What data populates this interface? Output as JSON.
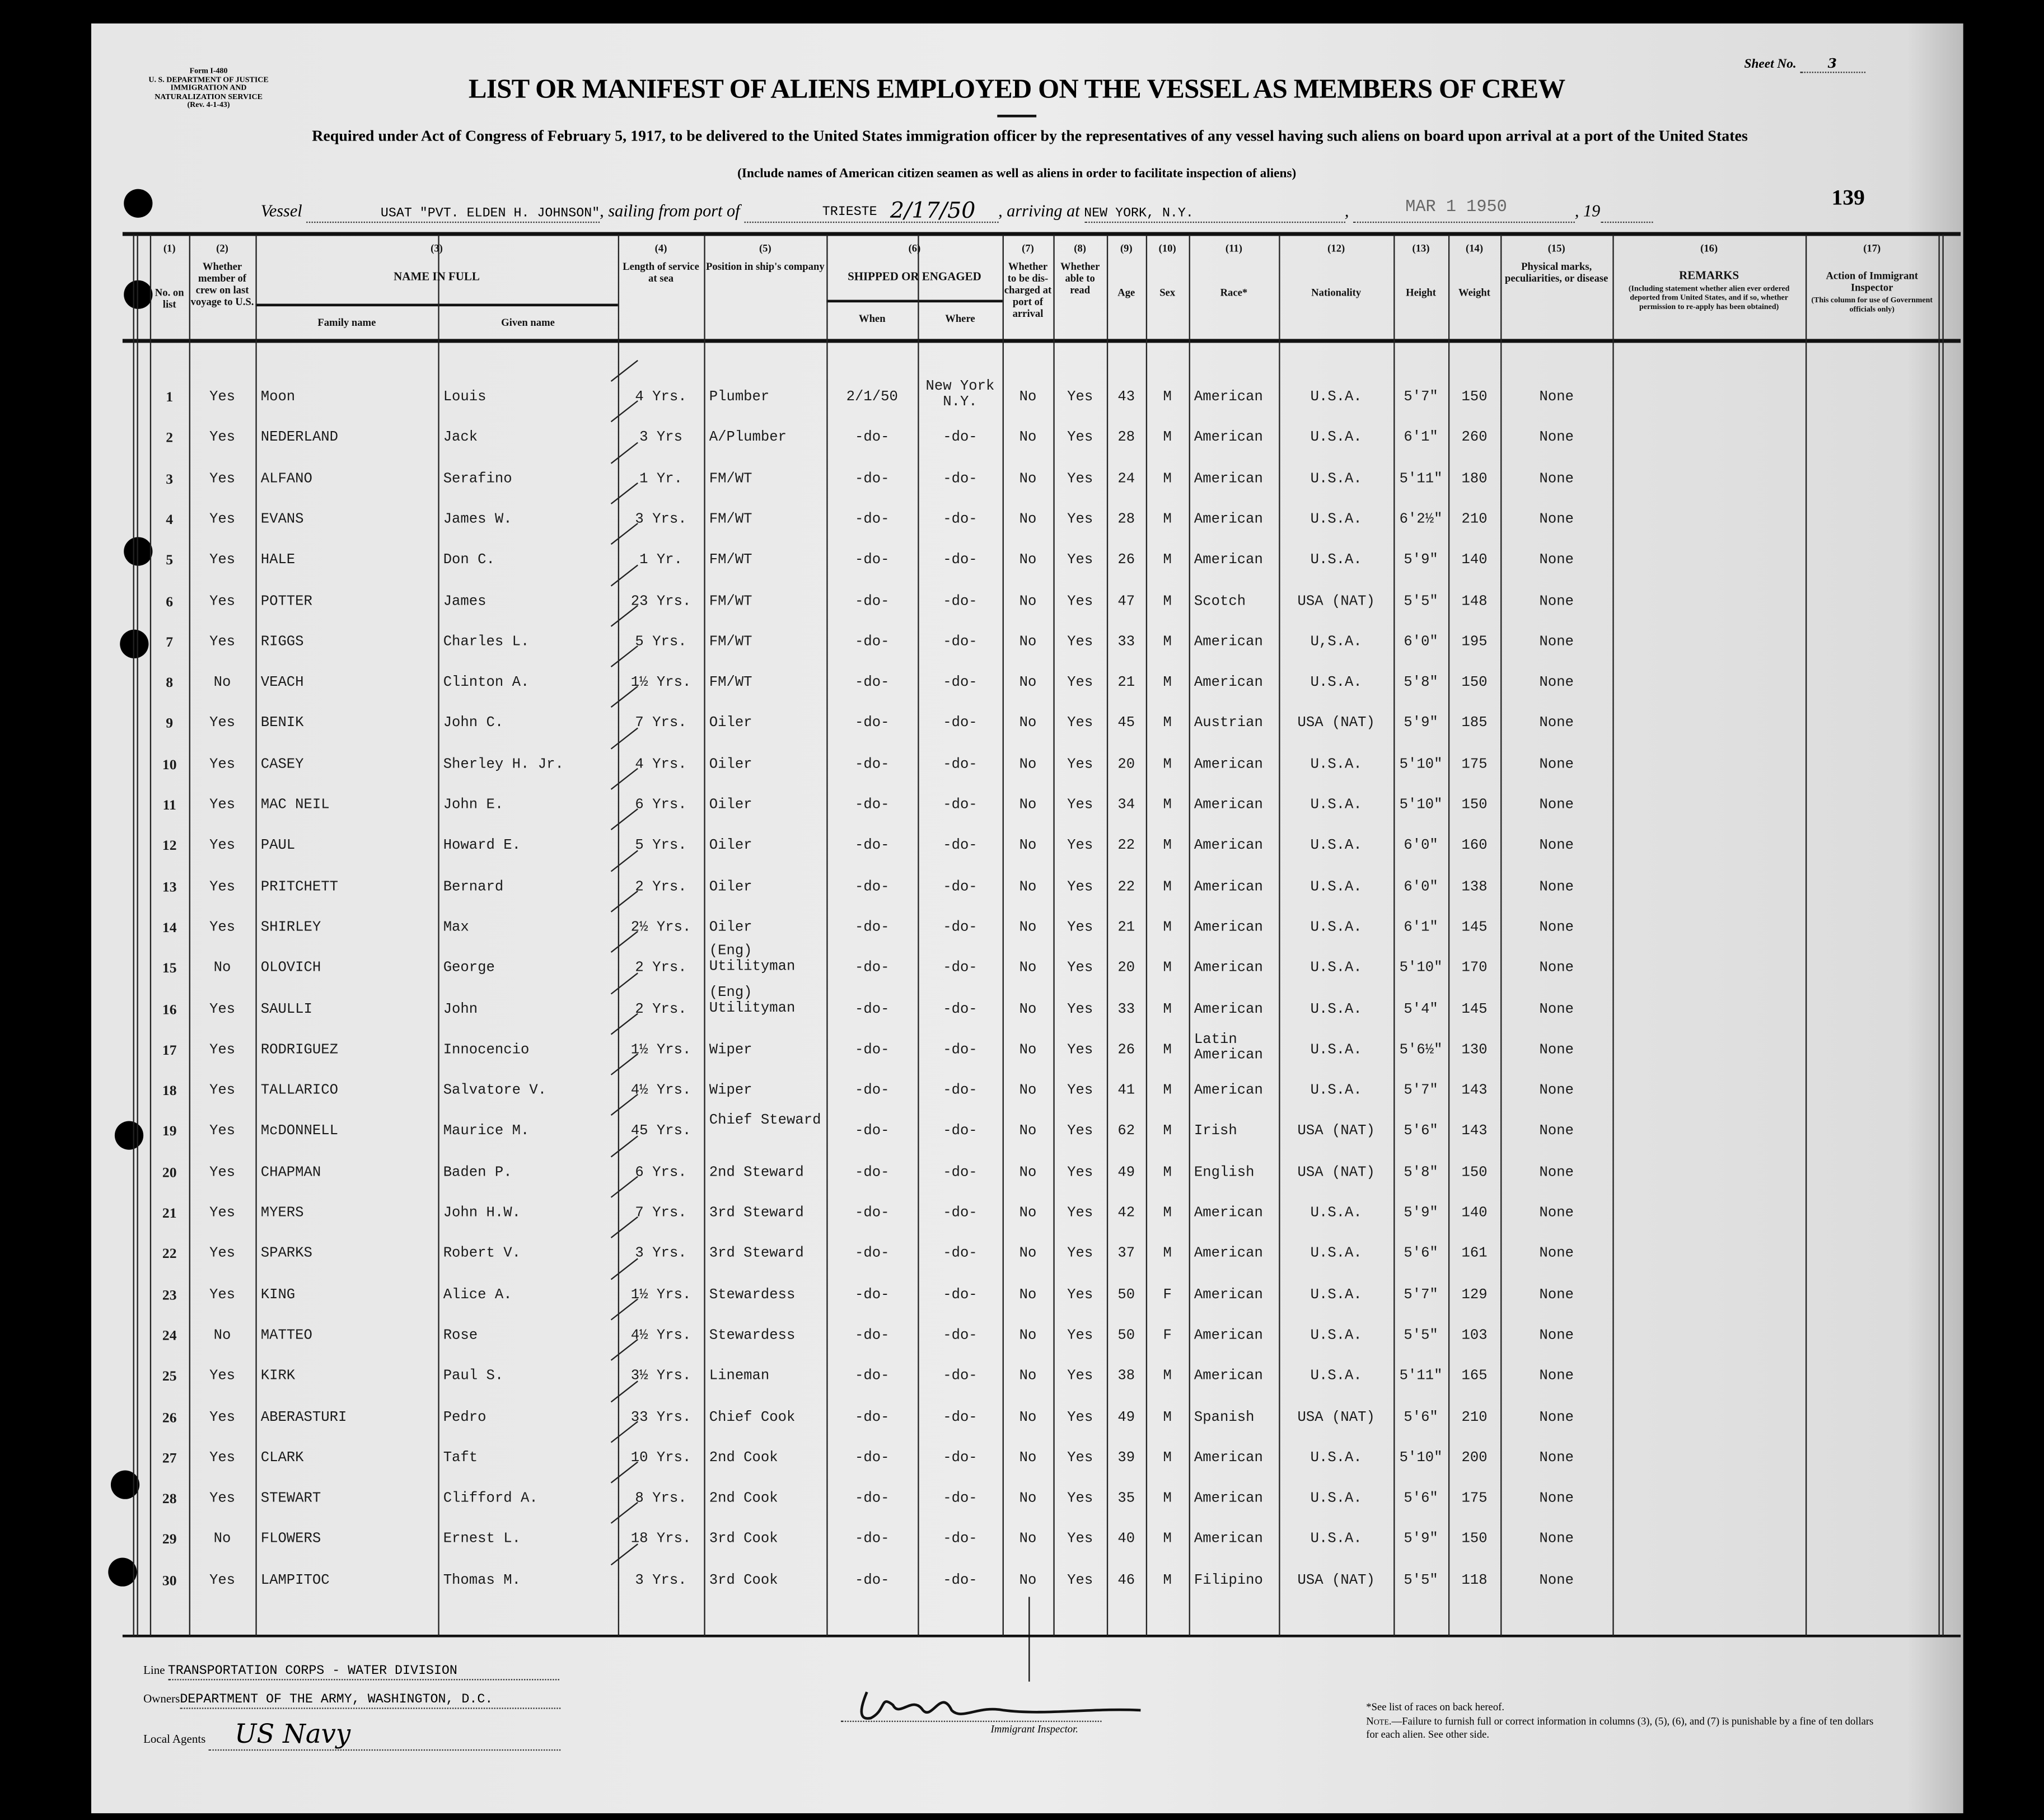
{
  "form": {
    "form_no": "Form I-480",
    "department": "U. S. DEPARTMENT OF JUSTICE",
    "service": "IMMIGRATION AND NATURALIZATION SERVICE",
    "revision": "(Rev. 4-1-43)",
    "sheet_label": "Sheet No.",
    "sheet_no": "3",
    "title": "LIST OR MANIFEST OF ALIENS EMPLOYED ON THE VESSEL AS MEMBERS OF CREW",
    "subtitle": "Required under Act of Congress of February 5, 1917, to be delivered to the United States immigration officer by the representatives of any vessel having such aliens on board upon arrival at a port of the United States",
    "note": "(Include names of American citizen seamen as well as aliens in order to facilitate inspection of aliens)",
    "page_number": "139"
  },
  "vessel": {
    "vessel_label": "Vessel",
    "vessel_name": "USAT \"PVT. ELDEN H. JOHNSON\"",
    "sailing_label": ", sailing from port of",
    "port": "TRIESTE",
    "handwritten_date": "2/17/50",
    "arriving_label": ", arriving at",
    "arrival_port": "NEW YORK, N.Y.",
    "stamp_date": "MAR 1 1950",
    "year_label": ", 19"
  },
  "columns": [
    {
      "num": "(1)",
      "label": "No. on list"
    },
    {
      "num": "(2)",
      "label": "Whether member of crew on last voyage to U.S."
    },
    {
      "num": "(3)",
      "label": "NAME IN FULL",
      "sub": [
        "Family name",
        "Given name"
      ]
    },
    {
      "num": "(4)",
      "label": "Length of service at sea"
    },
    {
      "num": "(5)",
      "label": "Position in ship's company"
    },
    {
      "num": "(6)",
      "label": "SHIPPED OR ENGAGED",
      "sub": [
        "When",
        "Where"
      ]
    },
    {
      "num": "(7)",
      "label": "Whether to be dis-charged at port of arrival"
    },
    {
      "num": "(8)",
      "label": "Whether able to read"
    },
    {
      "num": "(9)",
      "label": "Age"
    },
    {
      "num": "(10)",
      "label": "Sex"
    },
    {
      "num": "(11)",
      "label": "Race*"
    },
    {
      "num": "(12)",
      "label": "Nationality"
    },
    {
      "num": "(13)",
      "label": "Height"
    },
    {
      "num": "(14)",
      "label": "Weight"
    },
    {
      "num": "(15)",
      "label": "Physical marks, peculiarities, or disease"
    },
    {
      "num": "(16)",
      "label": "REMARKS",
      "detail": "(Including statement whether alien ever ordered deported from United States, and if so, whether permission to re-apply has been obtained)"
    },
    {
      "num": "(17)",
      "label": "Action of Immigrant Inspector",
      "detail": "(This column for use of Government officials only)"
    }
  ],
  "rows": [
    [
      "1",
      "Yes",
      "Moon",
      "Louis",
      "4 Yrs.",
      "Plumber",
      "2/1/50",
      "New York N.Y.",
      "No",
      "Yes",
      "43",
      "M",
      "American",
      "U.S.A.",
      "5'7\"",
      "150",
      "None"
    ],
    [
      "2",
      "Yes",
      "NEDERLAND",
      "Jack",
      "3 Yrs",
      "A/Plumber",
      "-do-",
      "-do-",
      "No",
      "Yes",
      "28",
      "M",
      "American",
      "U.S.A.",
      "6'1\"",
      "260",
      "None"
    ],
    [
      "3",
      "Yes",
      "ALFANO",
      "Serafino",
      "1 Yr.",
      "FM/WT",
      "-do-",
      "-do-",
      "No",
      "Yes",
      "24",
      "M",
      "American",
      "U.S.A.",
      "5'11\"",
      "180",
      "None"
    ],
    [
      "4",
      "Yes",
      "EVANS",
      "James W.",
      "3 Yrs.",
      "FM/WT",
      "-do-",
      "-do-",
      "No",
      "Yes",
      "28",
      "M",
      "American",
      "U.S.A.",
      "6'2½\"",
      "210",
      "None"
    ],
    [
      "5",
      "Yes",
      "HALE",
      "Don C.",
      "1 Yr.",
      "FM/WT",
      "-do-",
      "-do-",
      "No",
      "Yes",
      "26",
      "M",
      "American",
      "U.S.A.",
      "5'9\"",
      "140",
      "None"
    ],
    [
      "6",
      "Yes",
      "POTTER",
      "James",
      "23 Yrs.",
      "FM/WT",
      "-do-",
      "-do-",
      "No",
      "Yes",
      "47",
      "M",
      "Scotch",
      "USA (NAT)",
      "5'5\"",
      "148",
      "None"
    ],
    [
      "7",
      "Yes",
      "RIGGS",
      "Charles L.",
      "5 Yrs.",
      "FM/WT",
      "-do-",
      "-do-",
      "No",
      "Yes",
      "33",
      "M",
      "American",
      "U,S.A.",
      "6'0\"",
      "195",
      "None"
    ],
    [
      "8",
      "No",
      "VEACH",
      "Clinton A.",
      "1½ Yrs.",
      "FM/WT",
      "-do-",
      "-do-",
      "No",
      "Yes",
      "21",
      "M",
      "American",
      "U.S.A.",
      "5'8\"",
      "150",
      "None"
    ],
    [
      "9",
      "Yes",
      "BENIK",
      "John C.",
      "7 Yrs.",
      "Oiler",
      "-do-",
      "-do-",
      "No",
      "Yes",
      "45",
      "M",
      "Austrian",
      "USA (NAT)",
      "5'9\"",
      "185",
      "None"
    ],
    [
      "10",
      "Yes",
      "CASEY",
      "Sherley H. Jr.",
      "4 Yrs.",
      "Oiler",
      "-do-",
      "-do-",
      "No",
      "Yes",
      "20",
      "M",
      "American",
      "U.S.A.",
      "5'10\"",
      "175",
      "None"
    ],
    [
      "11",
      "Yes",
      "MAC NEIL",
      "John E.",
      "6 Yrs.",
      "Oiler",
      "-do-",
      "-do-",
      "No",
      "Yes",
      "34",
      "M",
      "American",
      "U.S.A.",
      "5'10\"",
      "150",
      "None"
    ],
    [
      "12",
      "Yes",
      "PAUL",
      "Howard E.",
      "5 Yrs.",
      "Oiler",
      "-do-",
      "-do-",
      "No",
      "Yes",
      "22",
      "M",
      "American",
      "U.S.A.",
      "6'0\"",
      "160",
      "None"
    ],
    [
      "13",
      "Yes",
      "PRITCHETT",
      "Bernard",
      "2 Yrs.",
      "Oiler",
      "-do-",
      "-do-",
      "No",
      "Yes",
      "22",
      "M",
      "American",
      "U.S.A.",
      "6'0\"",
      "138",
      "None"
    ],
    [
      "14",
      "Yes",
      "SHIRLEY",
      "Max",
      "2½ Yrs.",
      "Oiler",
      "-do-",
      "-do-",
      "No",
      "Yes",
      "21",
      "M",
      "American",
      "U.S.A.",
      "6'1\"",
      "145",
      "None"
    ],
    [
      "15",
      "No",
      "OLOVICH",
      "George",
      "2 Yrs.",
      "(Eng) Utilityman",
      "-do-",
      "-do-",
      "No",
      "Yes",
      "20",
      "M",
      "American",
      "U.S.A.",
      "5'10\"",
      "170",
      "None"
    ],
    [
      "16",
      "Yes",
      "SAULLI",
      "John",
      "2 Yrs.",
      "(Eng) Utilityman",
      "-do-",
      "-do-",
      "No",
      "Yes",
      "33",
      "M",
      "American",
      "U.S.A.",
      "5'4\"",
      "145",
      "None"
    ],
    [
      "17",
      "Yes",
      "RODRIGUEZ",
      "Innocencio",
      "1½ Yrs.",
      "Wiper",
      "-do-",
      "-do-",
      "No",
      "Yes",
      "26",
      "M",
      "Latin American",
      "U.S.A.",
      "5'6½\"",
      "130",
      "None"
    ],
    [
      "18",
      "Yes",
      "TALLARICO",
      "Salvatore V.",
      "4½ Yrs.",
      "Wiper",
      "-do-",
      "-do-",
      "No",
      "Yes",
      "41",
      "M",
      "American",
      "U.S.A.",
      "5'7\"",
      "143",
      "None"
    ],
    [
      "19",
      "Yes",
      "McDONNELL",
      "Maurice M.",
      "45 Yrs.",
      "Chief Steward",
      "-do-",
      "-do-",
      "No",
      "Yes",
      "62",
      "M",
      "Irish",
      "USA (NAT)",
      "5'6\"",
      "143",
      "None"
    ],
    [
      "20",
      "Yes",
      "CHAPMAN",
      "Baden P.",
      "6 Yrs.",
      "2nd Steward",
      "-do-",
      "-do-",
      "No",
      "Yes",
      "49",
      "M",
      "English",
      "USA (NAT)",
      "5'8\"",
      "150",
      "None"
    ],
    [
      "21",
      "Yes",
      "MYERS",
      "John H.W.",
      "7 Yrs.",
      "3rd Steward",
      "-do-",
      "-do-",
      "No",
      "Yes",
      "42",
      "M",
      "American",
      "U.S.A.",
      "5'9\"",
      "140",
      "None"
    ],
    [
      "22",
      "Yes",
      "SPARKS",
      "Robert V.",
      "3 Yrs.",
      "3rd Steward",
      "-do-",
      "-do-",
      "No",
      "Yes",
      "37",
      "M",
      "American",
      "U.S.A.",
      "5'6\"",
      "161",
      "None"
    ],
    [
      "23",
      "Yes",
      "KING",
      "Alice A.",
      "1½ Yrs.",
      "Stewardess",
      "-do-",
      "-do-",
      "No",
      "Yes",
      "50",
      "F",
      "American",
      "U.S.A.",
      "5'7\"",
      "129",
      "None"
    ],
    [
      "24",
      "No",
      "MATTEO",
      "Rose",
      "4½ Yrs.",
      "Stewardess",
      "-do-",
      "-do-",
      "No",
      "Yes",
      "50",
      "F",
      "American",
      "U.S.A.",
      "5'5\"",
      "103",
      "None"
    ],
    [
      "25",
      "Yes",
      "KIRK",
      "Paul S.",
      "3½ Yrs.",
      "Lineman",
      "-do-",
      "-do-",
      "No",
      "Yes",
      "38",
      "M",
      "American",
      "U.S.A.",
      "5'11\"",
      "165",
      "None"
    ],
    [
      "26",
      "Yes",
      "ABERASTURI",
      "Pedro",
      "33 Yrs.",
      "Chief Cook",
      "-do-",
      "-do-",
      "No",
      "Yes",
      "49",
      "M",
      "Spanish",
      "USA (NAT)",
      "5'6\"",
      "210",
      "None"
    ],
    [
      "27",
      "Yes",
      "CLARK",
      "Taft",
      "10 Yrs.",
      "2nd Cook",
      "-do-",
      "-do-",
      "No",
      "Yes",
      "39",
      "M",
      "American",
      "U.S.A.",
      "5'10\"",
      "200",
      "None"
    ],
    [
      "28",
      "Yes",
      "STEWART",
      "Clifford A.",
      "8 Yrs.",
      "2nd Cook",
      "-do-",
      "-do-",
      "No",
      "Yes",
      "35",
      "M",
      "American",
      "U.S.A.",
      "5'6\"",
      "175",
      "None"
    ],
    [
      "29",
      "No",
      "FLOWERS",
      "Ernest L.",
      "18 Yrs.",
      "3rd Cook",
      "-do-",
      "-do-",
      "No",
      "Yes",
      "40",
      "M",
      "American",
      "U.S.A.",
      "5'9\"",
      "150",
      "None"
    ],
    [
      "30",
      "Yes",
      "LAMPITOC",
      "Thomas M.",
      "3 Yrs.",
      "3rd Cook",
      "-do-",
      "-do-",
      "No",
      "Yes",
      "46",
      "M",
      "Filipino",
      "USA (NAT)",
      "5'5\"",
      "118",
      "None"
    ]
  ],
  "footer": {
    "line_label": "Line",
    "line_value": "TRANSPORTATION CORPS - WATER DIVISION",
    "owners_label": "Owners",
    "owners_value": "DEPARTMENT OF THE ARMY, WASHINGTON, D.C.",
    "agents_label": "Local Agents",
    "agents_value": "US Navy",
    "inspector_label": "Immigrant Inspector.",
    "races_note": "*See list of races on back hereof.",
    "note_label": "Note.",
    "note_text": "—Failure to furnish full or correct information in columns (3), (5), (6), and (7) is punishable by a fine of ten dollars for each alien. See other side."
  }
}
